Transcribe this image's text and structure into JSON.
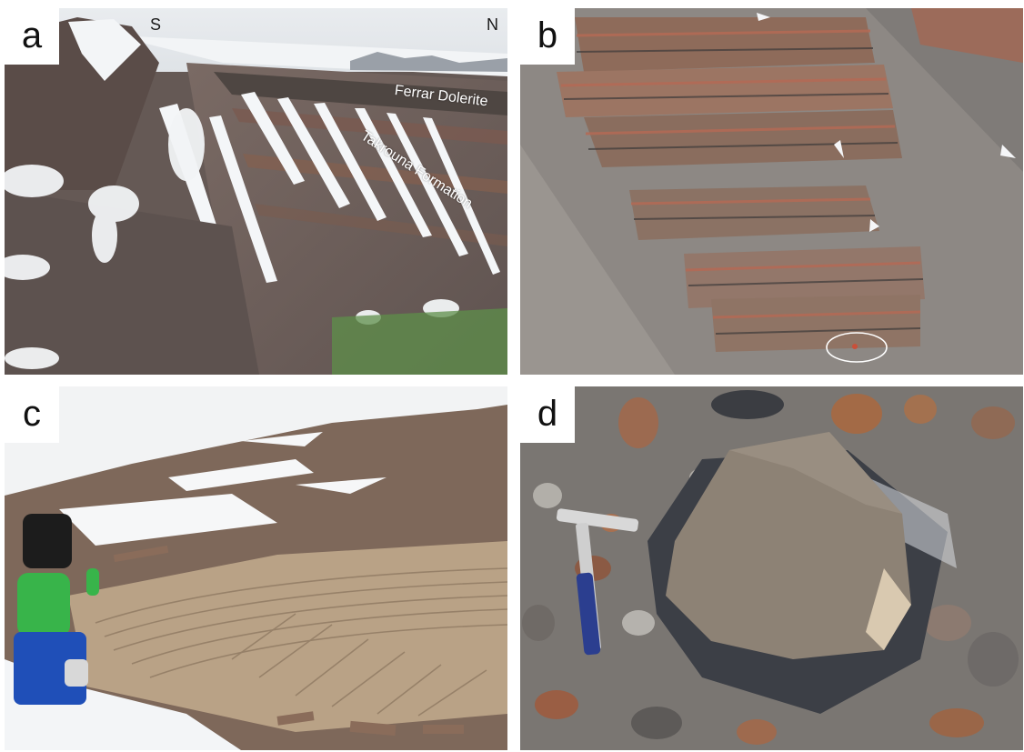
{
  "panels": [
    {
      "label": "a",
      "compass": {
        "left": "S",
        "right": "N"
      },
      "annotations": [
        "Ferrar Dolerite",
        "Takrouna Formation"
      ]
    },
    {
      "label": "b"
    },
    {
      "label": "c"
    },
    {
      "label": "d"
    }
  ],
  "colors": {
    "snow": "#f2f4f6",
    "rock_brown": "#6b5a52",
    "rock_red": "#b46a55",
    "sandstone": "#b9a286",
    "scree_grey": "#8f8a86",
    "sky": "#f4f5f6",
    "jacket_green": "#38b44a",
    "trousers_blue": "#1f4fb8",
    "hammer_blue": "#2b3e8f"
  }
}
